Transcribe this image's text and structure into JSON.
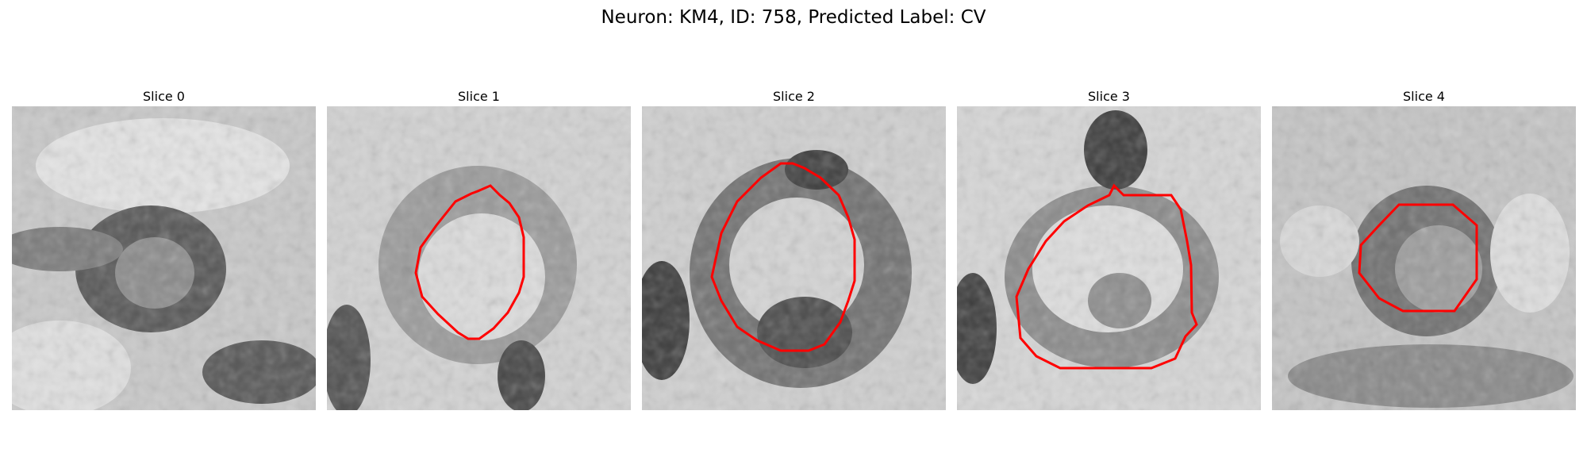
{
  "figure": {
    "title": "Neuron: KM4, ID: 758, Predicted Label: CV"
  },
  "colors": {
    "contour": "#ff0000",
    "background": "#ffffff"
  },
  "panels": [
    {
      "title": "Slice 0",
      "has_contour": false
    },
    {
      "title": "Slice 1",
      "has_contour": true
    },
    {
      "title": "Slice 2",
      "has_contour": true
    },
    {
      "title": "Slice 3",
      "has_contour": true
    },
    {
      "title": "Slice 4",
      "has_contour": true
    }
  ]
}
